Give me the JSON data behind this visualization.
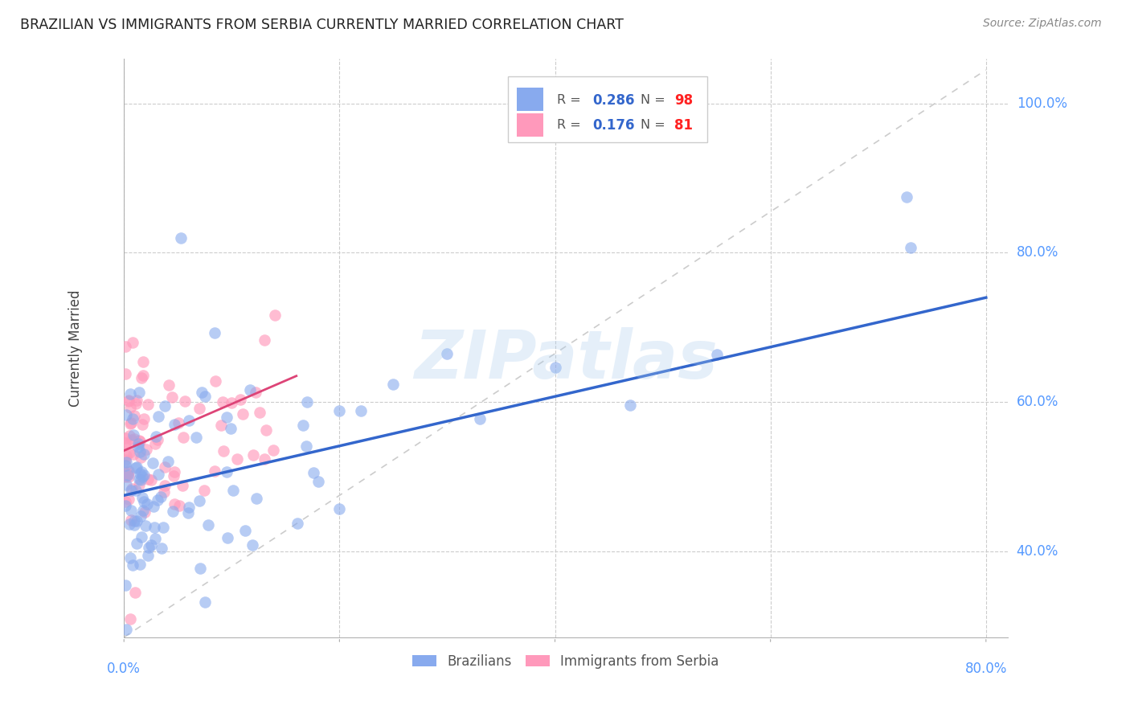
{
  "title": "BRAZILIAN VS IMMIGRANTS FROM SERBIA CURRENTLY MARRIED CORRELATION CHART",
  "source": "Source: ZipAtlas.com",
  "ylabel": "Currently Married",
  "y_tick_vals": [
    0.4,
    0.6,
    0.8,
    1.0
  ],
  "y_tick_labels": [
    "40.0%",
    "60.0%",
    "80.0%",
    "100.0%"
  ],
  "xlim": [
    0.0,
    0.82
  ],
  "ylim": [
    0.285,
    1.06
  ],
  "background_color": "#ffffff",
  "watermark": "ZIPatlas",
  "brazil_color": "#88aaee",
  "brazil_trend_color": "#3366cc",
  "serbia_color": "#ff99bb",
  "serbia_trend_color": "#dd4477",
  "diagonal_color": "#cccccc",
  "grid_color": "#cccccc",
  "title_color": "#222222",
  "axis_tick_color": "#5599ff",
  "legend_R_color": "#3366cc",
  "legend_N_color": "#ff2222",
  "legend_text_color": "#555555",
  "brazil_label": "Brazilians",
  "serbia_label": "Immigrants from Serbia",
  "brazil_R": 0.286,
  "brazil_N": 98,
  "serbia_R": 0.176,
  "serbia_N": 81,
  "brazil_trend_x": [
    0.0,
    0.8
  ],
  "brazil_trend_y_start": 0.475,
  "brazil_trend_y_end": 0.74,
  "serbia_trend_x": [
    0.0,
    0.16
  ],
  "serbia_trend_y_start": 0.535,
  "serbia_trend_y_end": 0.635
}
